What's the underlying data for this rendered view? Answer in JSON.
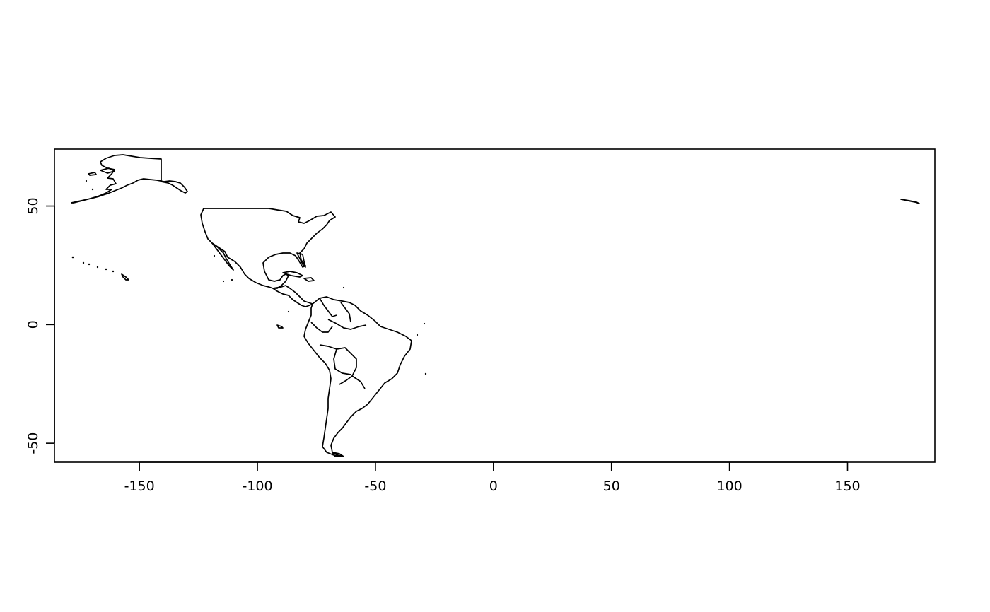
{
  "chart_data": {
    "type": "map",
    "title": "",
    "xlabel": "",
    "ylabel": "",
    "xlim": [
      -186,
      187
    ],
    "ylim": [
      -58,
      74
    ],
    "x_ticks": [
      -150,
      -100,
      -50,
      0,
      50,
      100,
      150
    ],
    "y_ticks": [
      -50,
      0,
      50
    ],
    "x_tick_labels": [
      "-150",
      "-100",
      "-50",
      "0",
      "50",
      "100",
      "150"
    ],
    "y_tick_labels": [
      "-50",
      "0",
      "50"
    ],
    "grid": false,
    "legend": "none",
    "regions": [
      "Alaska",
      "North America",
      "Central America",
      "Caribbean",
      "South America",
      "Hawaii",
      "Galapagos",
      "Aleutian Islands"
    ],
    "colors": {
      "outline": "#000000",
      "background": "#ffffff"
    }
  }
}
